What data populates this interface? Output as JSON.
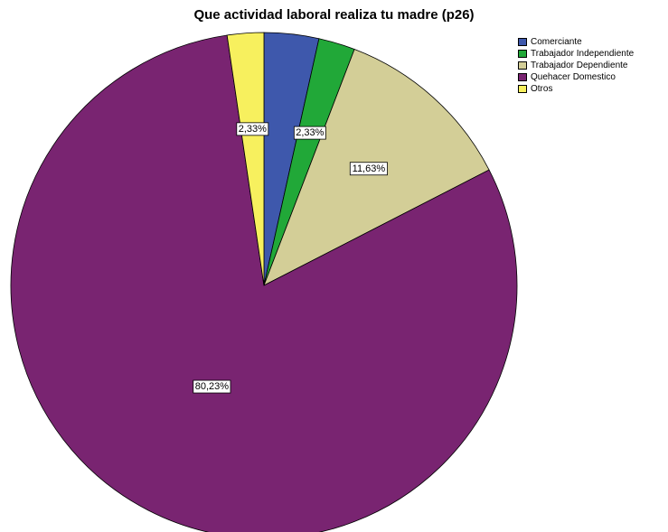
{
  "chart_data": {
    "type": "pie",
    "title": "Que actividad laboral realiza tu madre (p26)",
    "slices": [
      {
        "name": "Comerciante",
        "value": 3.49,
        "label": "",
        "color": "#3E58AC"
      },
      {
        "name": "Trabajador Independiente",
        "value": 2.33,
        "label": "2,33%",
        "color": "#21A838"
      },
      {
        "name": "Trabajador Dependiente",
        "value": 11.63,
        "label": "11,63%",
        "color": "#D3CE97"
      },
      {
        "name": "Quehacer Domestico",
        "value": 80.23,
        "label": "80,23%",
        "color": "#792471"
      },
      {
        "name": "Otros",
        "value": 2.33,
        "label": "2,33%",
        "color": "#F7F05E"
      }
    ],
    "legend_placement": "top-right"
  }
}
